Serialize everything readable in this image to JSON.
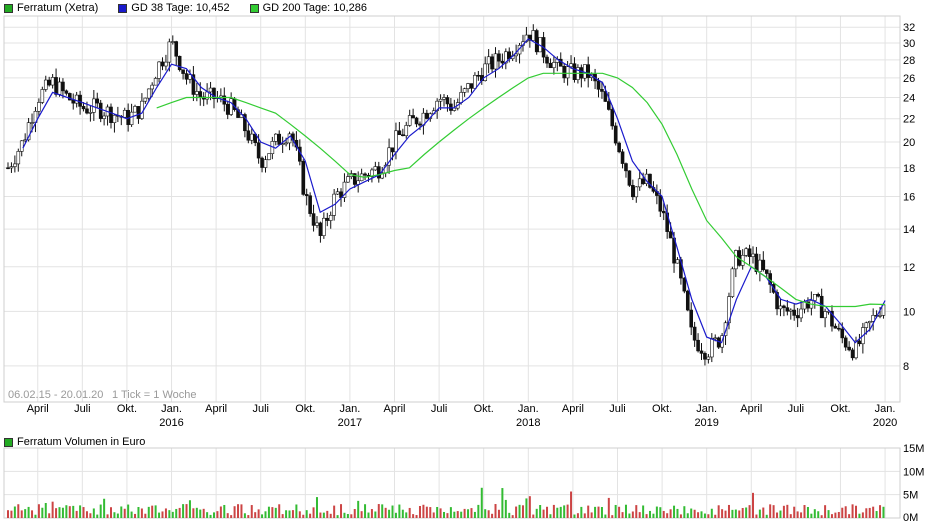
{
  "chart_data": {
    "type": "line",
    "title": "",
    "legend": [
      {
        "label": "Ferratum (Xetra)",
        "color": "#22aa22"
      },
      {
        "label": "GD 38 Tage: 10,452",
        "color": "#1a1acc"
      },
      {
        "label": "GD 200 Tage: 10,286",
        "color": "#33cc33"
      }
    ],
    "range_text": "06.02.15 - 20.01.20",
    "tick_text": "1 Tick = 1 Woche",
    "y_scale": "log",
    "ylim": [
      6.9,
      33.5
    ],
    "y_ticks": [
      8,
      10,
      12,
      14,
      16,
      18,
      20,
      22,
      24,
      26,
      28,
      30,
      32
    ],
    "x_ticks": [
      {
        "label": "April",
        "year": ""
      },
      {
        "label": "Juli",
        "year": ""
      },
      {
        "label": "Okt.",
        "year": ""
      },
      {
        "label": "Jan.",
        "year": "2016"
      },
      {
        "label": "April",
        "year": ""
      },
      {
        "label": "Juli",
        "year": ""
      },
      {
        "label": "Okt.",
        "year": ""
      },
      {
        "label": "Jan.",
        "year": "2017"
      },
      {
        "label": "April",
        "year": ""
      },
      {
        "label": "Juli",
        "year": ""
      },
      {
        "label": "Okt.",
        "year": ""
      },
      {
        "label": "Jan.",
        "year": "2018"
      },
      {
        "label": "April",
        "year": ""
      },
      {
        "label": "Juli",
        "year": ""
      },
      {
        "label": "Okt.",
        "year": ""
      },
      {
        "label": "Jan.",
        "year": "2019"
      },
      {
        "label": "April",
        "year": ""
      },
      {
        "label": "Juli",
        "year": ""
      },
      {
        "label": "Okt.",
        "year": ""
      },
      {
        "label": "Jan.",
        "year": "2020"
      }
    ],
    "series": [
      {
        "name": "Ferratum (Xetra)",
        "color": "#1a1a1a",
        "x": [
          "2015-02",
          "2015-03",
          "2015-04",
          "2015-05",
          "2015-06",
          "2015-07",
          "2015-08",
          "2015-09",
          "2015-10",
          "2015-11",
          "2015-12",
          "2016-01",
          "2016-02",
          "2016-03",
          "2016-04",
          "2016-05",
          "2016-06",
          "2016-07",
          "2016-08",
          "2016-09",
          "2016-10",
          "2016-11",
          "2016-12",
          "2017-01",
          "2017-02",
          "2017-03",
          "2017-04",
          "2017-05",
          "2017-06",
          "2017-07",
          "2017-08",
          "2017-09",
          "2017-10",
          "2017-11",
          "2017-12",
          "2018-01",
          "2018-02",
          "2018-03",
          "2018-04",
          "2018-05",
          "2018-06",
          "2018-07",
          "2018-08",
          "2018-09",
          "2018-10",
          "2018-11",
          "2018-12",
          "2019-01",
          "2019-02",
          "2019-03",
          "2019-04",
          "2019-05",
          "2019-06",
          "2019-07",
          "2019-08",
          "2019-09",
          "2019-10",
          "2019-11",
          "2019-12",
          "2020-01"
        ],
        "values": [
          18,
          20,
          24,
          25.5,
          24,
          23,
          23,
          22.5,
          22,
          23,
          27,
          30,
          26,
          24,
          24,
          23,
          21,
          18.5,
          20,
          21,
          16,
          13.5,
          16,
          17,
          17.5,
          18,
          20,
          21.5,
          22.5,
          24,
          23,
          25,
          27,
          28,
          29.5,
          31.5,
          29,
          27,
          26.5,
          26.5,
          24,
          20,
          16.5,
          17,
          15,
          12,
          9,
          8.5,
          9,
          12.5,
          12.5,
          11.5,
          10,
          10,
          10.5,
          10,
          9,
          8.5,
          9.5,
          10.5
        ]
      },
      {
        "name": "GD 38 Tage: 10,452",
        "color": "#1a1acc",
        "x": [
          "2015-02",
          "2015-03",
          "2015-04",
          "2015-05",
          "2015-06",
          "2015-07",
          "2015-08",
          "2015-09",
          "2015-10",
          "2015-11",
          "2015-12",
          "2016-01",
          "2016-02",
          "2016-03",
          "2016-04",
          "2016-05",
          "2016-06",
          "2016-07",
          "2016-08",
          "2016-09",
          "2016-10",
          "2016-11",
          "2016-12",
          "2017-01",
          "2017-02",
          "2017-03",
          "2017-04",
          "2017-05",
          "2017-06",
          "2017-07",
          "2017-08",
          "2017-09",
          "2017-10",
          "2017-11",
          "2017-12",
          "2018-01",
          "2018-02",
          "2018-03",
          "2018-04",
          "2018-05",
          "2018-06",
          "2018-07",
          "2018-08",
          "2018-09",
          "2018-10",
          "2018-11",
          "2018-12",
          "2019-01",
          "2019-02",
          "2019-03",
          "2019-04",
          "2019-05",
          "2019-06",
          "2019-07",
          "2019-08",
          "2019-09",
          "2019-10",
          "2019-11",
          "2019-12",
          "2020-01"
        ],
        "values": [
          null,
          19.5,
          22,
          24.5,
          24,
          23.5,
          23,
          22.5,
          22,
          22.5,
          25,
          27.5,
          27,
          25,
          24,
          23.5,
          22,
          20,
          19.5,
          20.5,
          18.5,
          15,
          15.5,
          16.5,
          17,
          17.5,
          19,
          20.5,
          21.5,
          23,
          23,
          24,
          26,
          27,
          28.5,
          30.5,
          29.5,
          28,
          27,
          26.5,
          25.5,
          22,
          18.5,
          17,
          16,
          13,
          10.5,
          9,
          8.8,
          10.5,
          12,
          11.5,
          10.5,
          10.3,
          10.5,
          10.2,
          9.5,
          8.8,
          9.3,
          10.452
        ]
      },
      {
        "name": "GD 200 Tage: 10,286",
        "color": "#33cc33",
        "x": [
          "2015-02",
          "2015-03",
          "2015-04",
          "2015-05",
          "2015-06",
          "2015-07",
          "2015-08",
          "2015-09",
          "2015-10",
          "2015-11",
          "2015-12",
          "2016-01",
          "2016-02",
          "2016-03",
          "2016-04",
          "2016-05",
          "2016-06",
          "2016-07",
          "2016-08",
          "2016-09",
          "2016-10",
          "2016-11",
          "2016-12",
          "2017-01",
          "2017-02",
          "2017-03",
          "2017-04",
          "2017-05",
          "2017-06",
          "2017-07",
          "2017-08",
          "2017-09",
          "2017-10",
          "2017-11",
          "2017-12",
          "2018-01",
          "2018-02",
          "2018-03",
          "2018-04",
          "2018-05",
          "2018-06",
          "2018-07",
          "2018-08",
          "2018-09",
          "2018-10",
          "2018-11",
          "2018-12",
          "2019-01",
          "2019-02",
          "2019-03",
          "2019-04",
          "2019-05",
          "2019-06",
          "2019-07",
          "2019-08",
          "2019-09",
          "2019-10",
          "2019-11",
          "2019-12",
          "2020-01"
        ],
        "values": [
          null,
          null,
          null,
          null,
          null,
          null,
          null,
          null,
          null,
          null,
          23,
          23.5,
          24,
          24,
          24,
          24,
          23.5,
          23,
          22.5,
          21.5,
          20.5,
          19.5,
          18.5,
          17.5,
          17.3,
          17.5,
          17.8,
          18,
          19,
          20,
          21,
          22,
          23,
          24,
          25,
          26,
          26.5,
          26.5,
          26.5,
          26.5,
          26.5,
          26,
          25,
          23.5,
          21.5,
          19,
          16.5,
          14.5,
          13.5,
          12.5,
          12,
          11.5,
          11,
          10.5,
          10.3,
          10.2,
          10.2,
          10.2,
          10.3,
          10.286
        ]
      }
    ],
    "volume": {
      "title": "Ferratum Volumen in Euro",
      "y_ticks": [
        "0M",
        "5M",
        "10M",
        "15M"
      ],
      "ylim": [
        0,
        15
      ],
      "unit": "M"
    }
  }
}
